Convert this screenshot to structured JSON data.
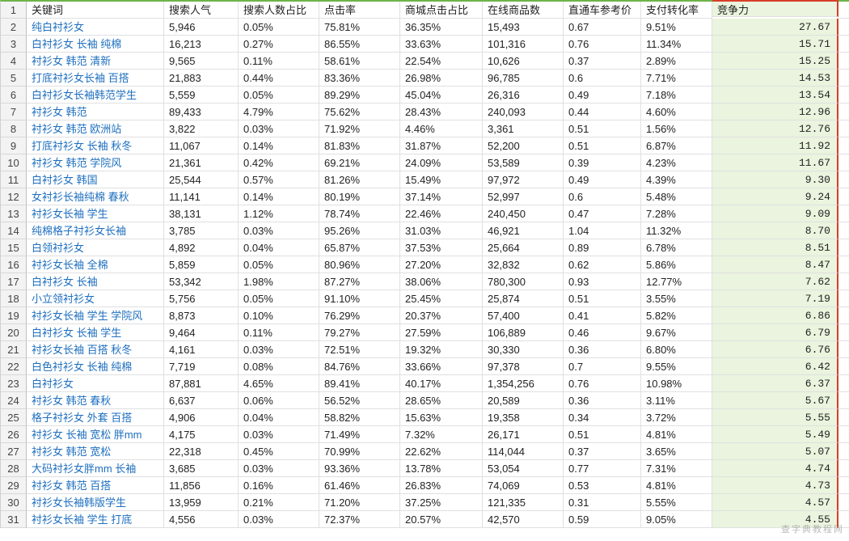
{
  "headers": {
    "c1": "关键词",
    "c2": "搜索人气",
    "c3": "搜索人数占比",
    "c4": "点击率",
    "c5": "商城点击占比",
    "c6": "在线商品数",
    "c7": "直通车参考价",
    "c8": "支付转化率",
    "c9": "竞争力"
  },
  "rows": [
    {
      "n": 2,
      "kw": "纯白衬衫女",
      "pop": "5,946",
      "popPct": "0.05%",
      "ctr": "75.81%",
      "mallCtr": "36.35%",
      "items": "15,493",
      "zt": "0.67",
      "conv": "9.51%",
      "comp": "27.67"
    },
    {
      "n": 3,
      "kw": "白衬衫女 长袖 纯棉",
      "pop": "16,213",
      "popPct": "0.27%",
      "ctr": "86.55%",
      "mallCtr": "33.63%",
      "items": "101,316",
      "zt": "0.76",
      "conv": "11.34%",
      "comp": "15.71"
    },
    {
      "n": 4,
      "kw": "衬衫女 韩范 清新",
      "pop": "9,565",
      "popPct": "0.11%",
      "ctr": "58.61%",
      "mallCtr": "22.54%",
      "items": "10,626",
      "zt": "0.37",
      "conv": "2.89%",
      "comp": "15.25"
    },
    {
      "n": 5,
      "kw": "打底衬衫女长袖 百搭",
      "pop": "21,883",
      "popPct": "0.44%",
      "ctr": "83.36%",
      "mallCtr": "26.98%",
      "items": "96,785",
      "zt": "0.6",
      "conv": "7.71%",
      "comp": "14.53"
    },
    {
      "n": 6,
      "kw": "白衬衫女长袖韩范学生",
      "pop": "5,559",
      "popPct": "0.05%",
      "ctr": "89.29%",
      "mallCtr": "45.04%",
      "items": "26,316",
      "zt": "0.49",
      "conv": "7.18%",
      "comp": "13.54"
    },
    {
      "n": 7,
      "kw": "衬衫女 韩范",
      "pop": "89,433",
      "popPct": "4.79%",
      "ctr": "75.62%",
      "mallCtr": "28.43%",
      "items": "240,093",
      "zt": "0.44",
      "conv": "4.60%",
      "comp": "12.96"
    },
    {
      "n": 8,
      "kw": "衬衫女 韩范 欧洲站",
      "pop": "3,822",
      "popPct": "0.03%",
      "ctr": "71.92%",
      "mallCtr": "4.46%",
      "items": "3,361",
      "zt": "0.51",
      "conv": "1.56%",
      "comp": "12.76"
    },
    {
      "n": 9,
      "kw": "打底衬衫女 长袖 秋冬",
      "pop": "11,067",
      "popPct": "0.14%",
      "ctr": "81.83%",
      "mallCtr": "31.87%",
      "items": "52,200",
      "zt": "0.51",
      "conv": "6.87%",
      "comp": "11.92"
    },
    {
      "n": 10,
      "kw": "衬衫女 韩范 学院风",
      "pop": "21,361",
      "popPct": "0.42%",
      "ctr": "69.21%",
      "mallCtr": "24.09%",
      "items": "53,589",
      "zt": "0.39",
      "conv": "4.23%",
      "comp": "11.67"
    },
    {
      "n": 11,
      "kw": "白衬衫女 韩国",
      "pop": "25,544",
      "popPct": "0.57%",
      "ctr": "81.26%",
      "mallCtr": "15.49%",
      "items": "97,972",
      "zt": "0.49",
      "conv": "4.39%",
      "comp": "9.30"
    },
    {
      "n": 12,
      "kw": "女衬衫长袖纯棉 春秋",
      "pop": "11,141",
      "popPct": "0.14%",
      "ctr": "80.19%",
      "mallCtr": "37.14%",
      "items": "52,997",
      "zt": "0.6",
      "conv": "5.48%",
      "comp": "9.24"
    },
    {
      "n": 13,
      "kw": "衬衫女长袖 学生",
      "pop": "38,131",
      "popPct": "1.12%",
      "ctr": "78.74%",
      "mallCtr": "22.46%",
      "items": "240,450",
      "zt": "0.47",
      "conv": "7.28%",
      "comp": "9.09"
    },
    {
      "n": 14,
      "kw": "纯棉格子衬衫女长袖",
      "pop": "3,785",
      "popPct": "0.03%",
      "ctr": "95.26%",
      "mallCtr": "31.03%",
      "items": "46,921",
      "zt": "1.04",
      "conv": "11.32%",
      "comp": "8.70"
    },
    {
      "n": 15,
      "kw": "白领衬衫女",
      "pop": "4,892",
      "popPct": "0.04%",
      "ctr": "65.87%",
      "mallCtr": "37.53%",
      "items": "25,664",
      "zt": "0.89",
      "conv": "6.78%",
      "comp": "8.51"
    },
    {
      "n": 16,
      "kw": "衬衫女长袖 全棉",
      "pop": "5,859",
      "popPct": "0.05%",
      "ctr": "80.96%",
      "mallCtr": "27.20%",
      "items": "32,832",
      "zt": "0.62",
      "conv": "5.86%",
      "comp": "8.47"
    },
    {
      "n": 17,
      "kw": "白衬衫女 长袖",
      "pop": "53,342",
      "popPct": "1.98%",
      "ctr": "87.27%",
      "mallCtr": "38.06%",
      "items": "780,300",
      "zt": "0.93",
      "conv": "12.77%",
      "comp": "7.62"
    },
    {
      "n": 18,
      "kw": "小立领衬衫女",
      "pop": "5,756",
      "popPct": "0.05%",
      "ctr": "91.10%",
      "mallCtr": "25.45%",
      "items": "25,874",
      "zt": "0.51",
      "conv": "3.55%",
      "comp": "7.19"
    },
    {
      "n": 19,
      "kw": "衬衫女长袖 学生 学院风",
      "pop": "8,873",
      "popPct": "0.10%",
      "ctr": "76.29%",
      "mallCtr": "20.37%",
      "items": "57,400",
      "zt": "0.41",
      "conv": "5.82%",
      "comp": "6.86"
    },
    {
      "n": 20,
      "kw": "白衬衫女 长袖 学生",
      "pop": "9,464",
      "popPct": "0.11%",
      "ctr": "79.27%",
      "mallCtr": "27.59%",
      "items": "106,889",
      "zt": "0.46",
      "conv": "9.67%",
      "comp": "6.79"
    },
    {
      "n": 21,
      "kw": "衬衫女长袖 百搭 秋冬",
      "pop": "4,161",
      "popPct": "0.03%",
      "ctr": "72.51%",
      "mallCtr": "19.32%",
      "items": "30,330",
      "zt": "0.36",
      "conv": "6.80%",
      "comp": "6.76"
    },
    {
      "n": 22,
      "kw": "白色衬衫女 长袖 纯棉",
      "pop": "7,719",
      "popPct": "0.08%",
      "ctr": "84.76%",
      "mallCtr": "33.66%",
      "items": "97,378",
      "zt": "0.7",
      "conv": "9.55%",
      "comp": "6.42"
    },
    {
      "n": 23,
      "kw": "白衬衫女",
      "pop": "87,881",
      "popPct": "4.65%",
      "ctr": "89.41%",
      "mallCtr": "40.17%",
      "items": "1,354,256",
      "zt": "0.76",
      "conv": "10.98%",
      "comp": "6.37"
    },
    {
      "n": 24,
      "kw": "衬衫女 韩范 春秋",
      "pop": "6,637",
      "popPct": "0.06%",
      "ctr": "56.52%",
      "mallCtr": "28.65%",
      "items": "20,589",
      "zt": "0.36",
      "conv": "3.11%",
      "comp": "5.67"
    },
    {
      "n": 25,
      "kw": "格子衬衫女 外套 百搭",
      "pop": "4,906",
      "popPct": "0.04%",
      "ctr": "58.82%",
      "mallCtr": "15.63%",
      "items": "19,358",
      "zt": "0.34",
      "conv": "3.72%",
      "comp": "5.55"
    },
    {
      "n": 26,
      "kw": "衬衫女 长袖 宽松 胖mm",
      "pop": "4,175",
      "popPct": "0.03%",
      "ctr": "71.49%",
      "mallCtr": "7.32%",
      "items": "26,171",
      "zt": "0.51",
      "conv": "4.81%",
      "comp": "5.49"
    },
    {
      "n": 27,
      "kw": "衬衫女 韩范 宽松",
      "pop": "22,318",
      "popPct": "0.45%",
      "ctr": "70.99%",
      "mallCtr": "22.62%",
      "items": "114,044",
      "zt": "0.37",
      "conv": "3.65%",
      "comp": "5.07"
    },
    {
      "n": 28,
      "kw": "大码衬衫女胖mm 长袖",
      "pop": "3,685",
      "popPct": "0.03%",
      "ctr": "93.36%",
      "mallCtr": "13.78%",
      "items": "53,054",
      "zt": "0.77",
      "conv": "7.31%",
      "comp": "4.74"
    },
    {
      "n": 29,
      "kw": "衬衫女 韩范 百搭",
      "pop": "11,856",
      "popPct": "0.16%",
      "ctr": "61.46%",
      "mallCtr": "26.83%",
      "items": "74,069",
      "zt": "0.53",
      "conv": "4.81%",
      "comp": "4.73"
    },
    {
      "n": 30,
      "kw": "衬衫女长袖韩版学生",
      "pop": "13,959",
      "popPct": "0.21%",
      "ctr": "71.20%",
      "mallCtr": "37.25%",
      "items": "121,335",
      "zt": "0.31",
      "conv": "5.55%",
      "comp": "4.57"
    },
    {
      "n": 31,
      "kw": "衬衫女长袖 学生 打底",
      "pop": "4,556",
      "popPct": "0.03%",
      "ctr": "72.37%",
      "mallCtr": "20.57%",
      "items": "42,570",
      "zt": "0.59",
      "conv": "9.05%",
      "comp": "4.55"
    }
  ],
  "style": {
    "highlightBg": "#eaf4de",
    "highlightBorder": "#d83e2a",
    "gridBorder": "#e0e0e0",
    "topBorder": "#6eb34a",
    "keywordColor": "#1e6fbf"
  },
  "watermark": "查字典教程网"
}
